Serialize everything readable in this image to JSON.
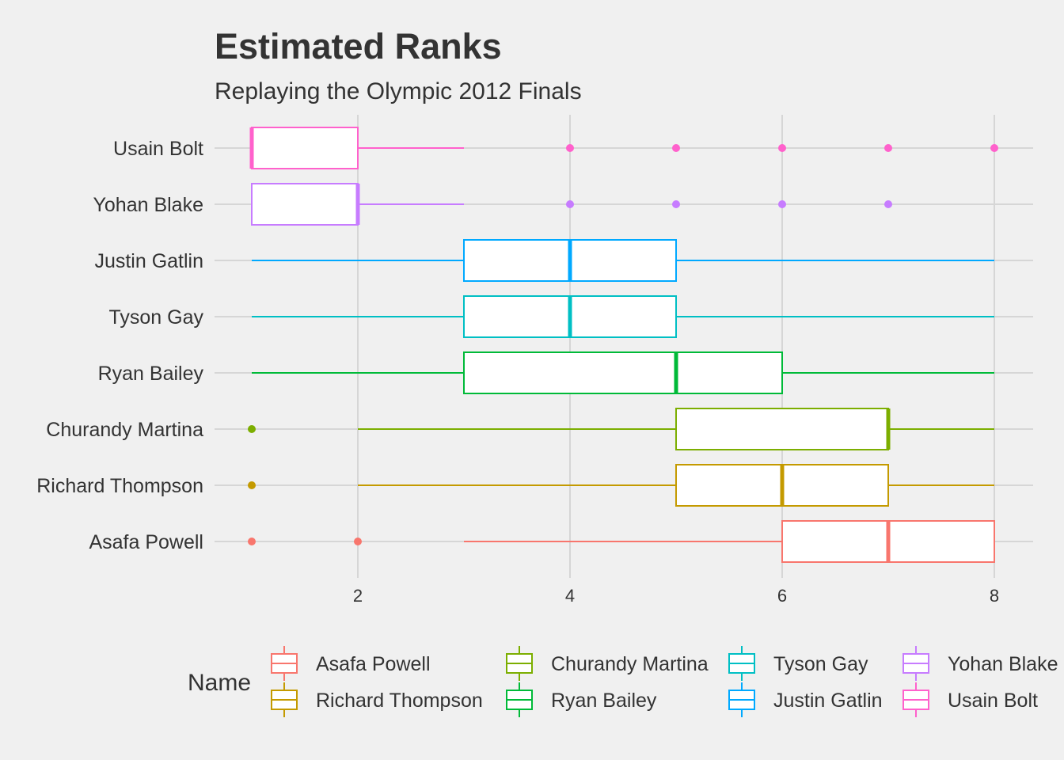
{
  "chart_data": {
    "type": "boxplot",
    "orientation": "horizontal",
    "title": "Estimated Ranks",
    "subtitle": "Replaying the Olympic 2012 Finals",
    "xlabel": "",
    "ylabel": "",
    "xlim": [
      0.75,
      8.35
    ],
    "x_ticks": [
      2,
      4,
      6,
      8
    ],
    "grid": true,
    "legend_placement": "bottom",
    "legend_title": "Name",
    "categories_bottom_to_top": [
      "Asafa Powell",
      "Richard Thompson",
      "Churandy Martina",
      "Ryan Bailey",
      "Tyson Gay",
      "Justin Gatlin",
      "Yohan Blake",
      "Usain Bolt"
    ],
    "series": [
      {
        "name": "Asafa Powell",
        "color": "#F8766D",
        "whisker_low": 3,
        "q1": 6,
        "median": 7,
        "q3": 8,
        "whisker_high": 8,
        "outliers": [
          1,
          2
        ]
      },
      {
        "name": "Richard Thompson",
        "color": "#C49A00",
        "whisker_low": 2,
        "q1": 5,
        "median": 6,
        "q3": 7,
        "whisker_high": 8,
        "outliers": [
          1
        ]
      },
      {
        "name": "Churandy Martina",
        "color": "#7CAE00",
        "whisker_low": 2,
        "q1": 5,
        "median": 7,
        "q3": 7,
        "whisker_high": 8,
        "outliers": [
          1
        ]
      },
      {
        "name": "Ryan Bailey",
        "color": "#00BA38",
        "whisker_low": 1,
        "q1": 3,
        "median": 5,
        "q3": 6,
        "whisker_high": 8,
        "outliers": []
      },
      {
        "name": "Tyson Gay",
        "color": "#00BFC4",
        "whisker_low": 1,
        "q1": 3,
        "median": 4,
        "q3": 5,
        "whisker_high": 8,
        "outliers": []
      },
      {
        "name": "Justin Gatlin",
        "color": "#00A9FF",
        "whisker_low": 1,
        "q1": 3,
        "median": 4,
        "q3": 5,
        "whisker_high": 8,
        "outliers": []
      },
      {
        "name": "Yohan Blake",
        "color": "#C77CFF",
        "whisker_low": 1,
        "q1": 1,
        "median": 2,
        "q3": 2,
        "whisker_high": 3,
        "outliers": [
          4,
          5,
          6,
          7
        ]
      },
      {
        "name": "Usain Bolt",
        "color": "#FF61CC",
        "whisker_low": 1,
        "q1": 1,
        "median": 1,
        "q3": 2,
        "whisker_high": 3,
        "outliers": [
          4,
          5,
          6,
          7,
          8
        ]
      }
    ],
    "legend_order": [
      "Asafa Powell",
      "Richard Thompson",
      "Churandy Martina",
      "Ryan Bailey",
      "Tyson Gay",
      "Justin Gatlin",
      "Yohan Blake",
      "Usain Bolt"
    ]
  }
}
